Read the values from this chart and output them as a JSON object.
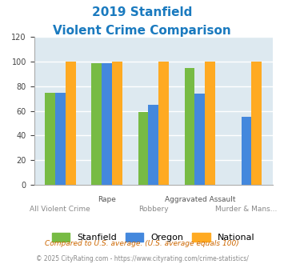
{
  "title_line1": "2019 Stanfield",
  "title_line2": "Violent Crime Comparison",
  "title_color": "#1a7abf",
  "cat_labels_upper": [
    "",
    "Rape",
    "",
    "Aggravated Assault",
    ""
  ],
  "cat_labels_lower": [
    "All Violent Crime",
    "",
    "Robbery",
    "",
    "Murder & Mans..."
  ],
  "stanfield": [
    75,
    99,
    59,
    95,
    0
  ],
  "oregon": [
    75,
    99,
    65,
    74,
    55
  ],
  "national": [
    100,
    100,
    100,
    100,
    100
  ],
  "bar_colors": [
    "#77bb44",
    "#4488dd",
    "#ffaa22"
  ],
  "ylim": [
    0,
    120
  ],
  "yticks": [
    0,
    20,
    40,
    60,
    80,
    100,
    120
  ],
  "legend_labels": [
    "Stanfield",
    "Oregon",
    "National"
  ],
  "footnote1": "Compared to U.S. average. (U.S. average equals 100)",
  "footnote2": "© 2025 CityRating.com - https://www.cityrating.com/crime-statistics/",
  "footnote1_color": "#cc6600",
  "footnote2_color": "#888888",
  "bg_color": "#dde9f0",
  "fig_bg": "#ffffff",
  "grid_color": "#ffffff",
  "bar_width": 0.22
}
